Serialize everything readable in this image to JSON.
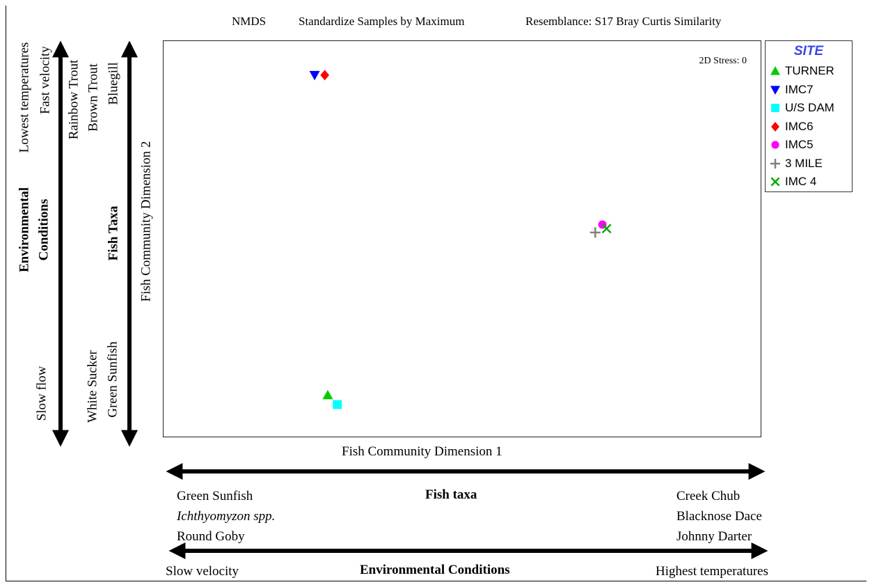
{
  "header": {
    "method": "NMDS",
    "standardize": "Standardize Samples by Maximum",
    "resemblance": "Resemblance: S17 Bray Curtis Similarity"
  },
  "chart_data": {
    "type": "scatter",
    "xlabel": "Fish Community Dimension 1",
    "ylabel": "Fish Community Dimension 2",
    "stress": "2D Stress: 0",
    "xlim": [
      0,
      100
    ],
    "ylim": [
      0,
      100
    ],
    "legend_title": "SITE",
    "legend_position": "outside-right",
    "grid": false,
    "series": [
      {
        "name": "TURNER",
        "symbol": "triangle-up",
        "color": "#00cc00",
        "x": 27.5,
        "y": 10.5
      },
      {
        "name": "IMC7",
        "symbol": "triangle-down",
        "color": "#0000ff",
        "x": 25.3,
        "y": 91.4
      },
      {
        "name": "U/S DAM",
        "symbol": "square",
        "color": "#00ffff",
        "x": 29.1,
        "y": 8.1
      },
      {
        "name": "IMC6",
        "symbol": "diamond",
        "color": "#ff0000",
        "x": 27.0,
        "y": 91.4
      },
      {
        "name": "IMC5",
        "symbol": "circle",
        "color": "#ff00ff",
        "x": 73.5,
        "y": 53.6
      },
      {
        "name": "3 MILE",
        "symbol": "plus",
        "color": "#808080",
        "x": 72.3,
        "y": 51.6
      },
      {
        "name": "IMC 4",
        "symbol": "x",
        "color": "#00aa00",
        "x": 74.2,
        "y": 52.6
      }
    ]
  },
  "left_axis_env": {
    "title_line1": "Environmental",
    "title_line2": "Conditions",
    "top_line1": "Lowest temperatures",
    "top_line2": "Fast velocity",
    "bottom": "Slow flow"
  },
  "left_axis_taxa": {
    "title": "Fish Taxa",
    "top": [
      "Rainbow Trout",
      "Brown Trout",
      "Bluegill"
    ],
    "bottom": [
      "White Sucker",
      "Green Sunfish"
    ]
  },
  "bottom_axis_taxa": {
    "title": "Fish taxa",
    "left": [
      "Green Sunfish",
      "Ichthyomyzon spp.",
      "Round Goby"
    ],
    "right": [
      "Creek Chub",
      "Blacknose Dace",
      "Johnny Darter"
    ]
  },
  "bottom_axis_env": {
    "title": "Environmental Conditions",
    "left": "Slow velocity",
    "right": "Highest temperatures"
  }
}
